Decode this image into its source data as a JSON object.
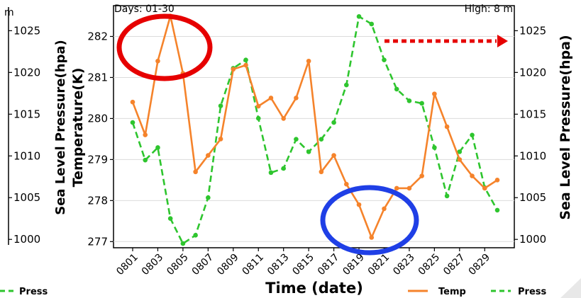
{
  "colors": {
    "temp": "#f5832b",
    "press": "#2ec52e",
    "highlight_high": "#e60000",
    "highlight_low": "#1f3fe6",
    "arrow": "#e60000",
    "axis": "#000000",
    "grid": "#dcdcdc"
  },
  "header": {
    "days_label": "Days: 01-30",
    "height_label": "High: 8 m"
  },
  "left_panel": {
    "corner_text": "m",
    "ticks": [
      "1025",
      "1020",
      "1015",
      "1010",
      "1005",
      "1000"
    ],
    "legend_press": "Press"
  },
  "chart_data": {
    "type": "line",
    "categories": [
      "0801",
      "0802",
      "0803",
      "0804",
      "0805",
      "0806",
      "0807",
      "0808",
      "0809",
      "0810",
      "0811",
      "0812",
      "0813",
      "0814",
      "0815",
      "0816",
      "0817",
      "0818",
      "0819",
      "0820",
      "0821",
      "0822",
      "0823",
      "0824",
      "0825",
      "0826",
      "0827",
      "0828",
      "0829",
      "0830"
    ],
    "x_tick_labels": [
      "0801",
      "0803",
      "0805",
      "0807",
      "0809",
      "0811",
      "0813",
      "0815",
      "0817",
      "0819",
      "0821",
      "0823",
      "0825",
      "0827",
      "0829"
    ],
    "xlabel": "Time (date)",
    "ylabel_left": "Temperature(K)",
    "ylabel_right": "Sea Level Pressure(hpa)",
    "ylim_left": [
      276.85,
      282.75
    ],
    "ylim_right": [
      999.0,
      1028.0
    ],
    "yticks_left": [
      277,
      278,
      279,
      280,
      281,
      282
    ],
    "yticks_right": [
      1000,
      1005,
      1010,
      1015,
      1020,
      1025
    ],
    "grid": true,
    "legend_placement": "bottom-right",
    "series": [
      {
        "name": "Temp",
        "axis": "left",
        "style": "solid",
        "values": [
          280.4,
          279.6,
          281.4,
          282.5,
          281.1,
          278.7,
          279.1,
          279.5,
          281.2,
          281.3,
          280.3,
          280.5,
          280.0,
          280.5,
          281.4,
          278.7,
          279.1,
          278.4,
          277.9,
          277.1,
          277.8,
          278.3,
          278.3,
          278.6,
          280.6,
          279.8,
          279.0,
          278.6,
          278.3,
          278.5
        ]
      },
      {
        "name": "Press",
        "axis": "right",
        "style": "dashed",
        "values": [
          1014.0,
          1009.5,
          1011.0,
          1002.5,
          999.5,
          1000.5,
          1005.0,
          1016.0,
          1020.5,
          1021.5,
          1014.5,
          1008.0,
          1008.5,
          1012.0,
          1010.5,
          1012.0,
          1014.0,
          1018.5,
          1026.7,
          1025.8,
          1021.5,
          1018.0,
          1016.6,
          1016.3,
          1011.0,
          1005.2,
          1010.5,
          1012.5,
          1006.2,
          1003.5
        ]
      }
    ]
  }
}
